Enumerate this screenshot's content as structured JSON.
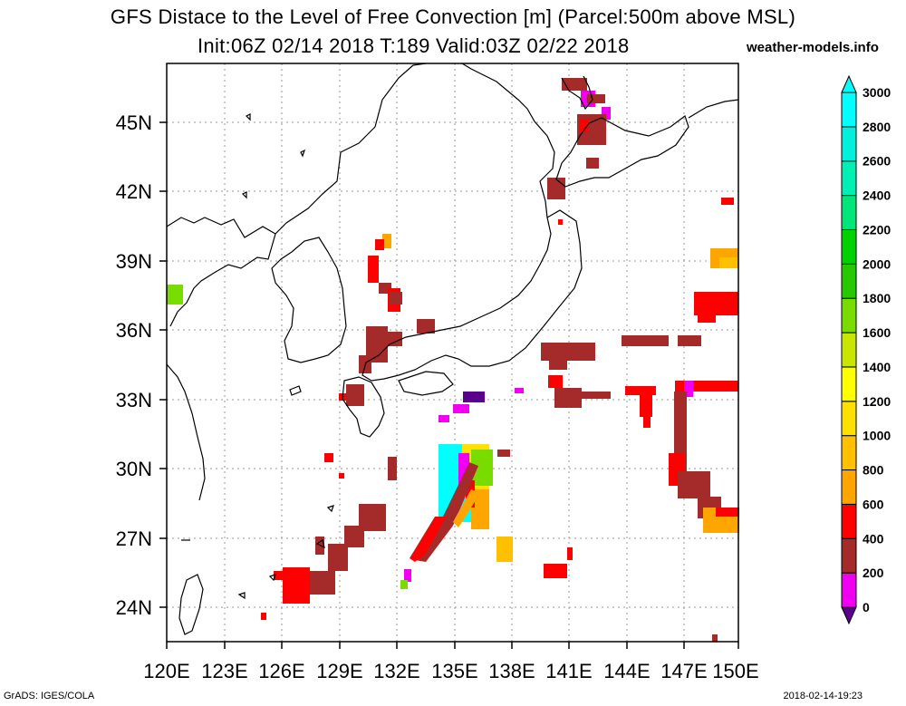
{
  "title": {
    "line1": "GFS Distace to the Level of Free Convection [m] (Parcel:500m above MSL)",
    "line2": "Init:06Z 02/14 2018 T:189 Valid:03Z 02/22 2018",
    "site": "weather-models.info"
  },
  "footer": {
    "left": "GrADS: IGES/COLA",
    "right": "2018-02-14-19:23"
  },
  "axes": {
    "lon_range": [
      120,
      150
    ],
    "lat_range": [
      22.5,
      47.5
    ],
    "x_ticks": [
      "120E",
      "123E",
      "126E",
      "129E",
      "132E",
      "135E",
      "138E",
      "141E",
      "144E",
      "147E",
      "150E"
    ],
    "y_ticks": [
      "24N",
      "27N",
      "30N",
      "33N",
      "36N",
      "39N",
      "42N",
      "45N"
    ]
  },
  "colorbar": {
    "labels": [
      "0",
      "200",
      "400",
      "600",
      "800",
      "1000",
      "1200",
      "1400",
      "1600",
      "1800",
      "2000",
      "2200",
      "2400",
      "2600",
      "2800",
      "3000"
    ],
    "colors": [
      "#5a008c",
      "#f000f0",
      "#a52a2a",
      "#ff0000",
      "#ffa500",
      "#ffc000",
      "#ffe000",
      "#ffff00",
      "#c8e600",
      "#78dc00",
      "#28c800",
      "#00d200",
      "#00e678",
      "#00f0b4",
      "#00f0dc",
      "#00ffff"
    ]
  },
  "colors": {
    "v200": "#f000f0",
    "v400": "#a52a2a",
    "v600": "#ff0000",
    "v800": "#ffa500",
    "v1000": "#ffc000",
    "v1200": "#ffe000",
    "v1800": "#78dc00",
    "v3000": "#00ffff",
    "v0": "#5a008c"
  }
}
